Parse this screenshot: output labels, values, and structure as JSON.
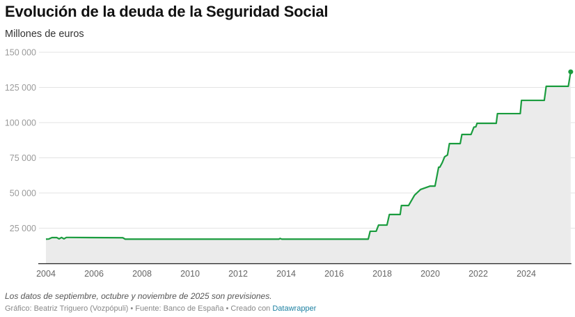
{
  "header": {
    "title": "Evolución de la deuda de la Seguridad Social",
    "subtitle": "Millones de euros"
  },
  "footer": {
    "note": "Los datos de septiembre, octubre y noviembre de 2025 son previsiones.",
    "credit_prefix": "Gráfico: Beatriz Triguero (Vozpópuli) • Fuente: Banco de España • Creado con ",
    "credit_link": "Datawrapper"
  },
  "colors": {
    "line": "#1a9c3e",
    "area": "#ebebeb",
    "grid": "#e3e3e3",
    "axis": "#222222",
    "link": "#1d81a2"
  },
  "chart_data": {
    "type": "area",
    "title": "Evolución de la deuda de la Seguridad Social",
    "ylabel": "Millones de euros",
    "xlabel": "",
    "xlim": [
      2004,
      2025.85
    ],
    "ylim": [
      0,
      150000
    ],
    "grid": true,
    "legend": "none",
    "y_ticks": [
      {
        "value": 0,
        "label": ""
      },
      {
        "value": 25000,
        "label": "25 000"
      },
      {
        "value": 50000,
        "label": "50 000"
      },
      {
        "value": 75000,
        "label": "75 000"
      },
      {
        "value": 100000,
        "label": "100 000"
      },
      {
        "value": 125000,
        "label": "125 000"
      },
      {
        "value": 150000,
        "label": "150 000"
      }
    ],
    "x_ticks": [
      {
        "value": 2004,
        "label": "2004"
      },
      {
        "value": 2006,
        "label": "2006"
      },
      {
        "value": 2008,
        "label": "2008"
      },
      {
        "value": 2010,
        "label": "2010"
      },
      {
        "value": 2012,
        "label": "2012"
      },
      {
        "value": 2014,
        "label": "2014"
      },
      {
        "value": 2016,
        "label": "2016"
      },
      {
        "value": 2018,
        "label": "2018"
      },
      {
        "value": 2020,
        "label": "2020"
      },
      {
        "value": 2022,
        "label": "2022"
      },
      {
        "value": 2024,
        "label": "2024"
      }
    ],
    "series": [
      {
        "name": "Deuda de la Seguridad Social",
        "x": [
          2004.0,
          2004.12,
          2004.25,
          2004.45,
          2004.55,
          2004.65,
          2004.75,
          2004.85,
          2004.95,
          2005.0,
          2007.2,
          2007.3,
          2013.7,
          2013.75,
          2013.82,
          2017.42,
          2017.5,
          2017.75,
          2017.85,
          2018.2,
          2018.3,
          2018.75,
          2018.8,
          2019.1,
          2019.35,
          2019.6,
          2020.0,
          2020.2,
          2020.35,
          2020.4,
          2020.5,
          2020.6,
          2020.72,
          2020.8,
          2021.25,
          2021.32,
          2021.7,
          2021.82,
          2021.9,
          2021.95,
          2022.08,
          2022.75,
          2022.8,
          2023.75,
          2023.8,
          2024.75,
          2024.83,
          2025.75,
          2025.85
        ],
        "values": [
          17200,
          17300,
          18300,
          18300,
          17400,
          18400,
          17400,
          18400,
          18400,
          18400,
          18200,
          17200,
          17200,
          17700,
          17200,
          17200,
          22800,
          22800,
          27200,
          27200,
          34700,
          34700,
          41100,
          41100,
          48500,
          52500,
          54900,
          54900,
          68300,
          68300,
          71500,
          75700,
          77000,
          85100,
          85100,
          91600,
          91600,
          96800,
          97000,
          99500,
          99500,
          99500,
          106400,
          106400,
          115800,
          115800,
          125800,
          125800,
          136100
        ]
      }
    ],
    "annotations": []
  }
}
